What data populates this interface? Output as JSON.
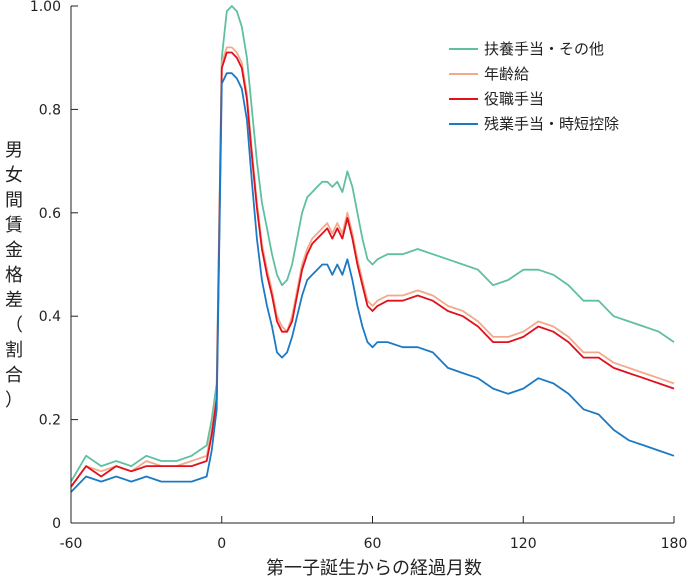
{
  "chart_data": {
    "type": "line",
    "title": "",
    "xlabel": "第一子誕生からの経過月数",
    "ylabel": "男女間賃金格差（割合）",
    "xlim": [
      -60,
      180
    ],
    "ylim": [
      0,
      1.0
    ],
    "x_ticks": [
      -60,
      0,
      60,
      120,
      180
    ],
    "x_tick_labels": [
      "-60",
      "0",
      "60",
      "120",
      "180"
    ],
    "y_ticks": [
      0,
      0.2,
      0.4,
      0.6,
      0.8,
      1.0
    ],
    "y_tick_labels": [
      "0",
      "0.2",
      "0.4",
      "0.6",
      "0.8",
      "1.00"
    ],
    "grid": false,
    "legend_position": "top-right",
    "x": [
      -60,
      -54,
      -48,
      -42,
      -36,
      -30,
      -24,
      -18,
      -12,
      -6,
      -4,
      -2,
      0,
      2,
      4,
      6,
      8,
      10,
      12,
      14,
      16,
      18,
      20,
      22,
      24,
      26,
      28,
      30,
      32,
      34,
      36,
      38,
      40,
      42,
      44,
      46,
      48,
      50,
      52,
      54,
      56,
      58,
      60,
      62,
      66,
      72,
      78,
      84,
      90,
      96,
      102,
      108,
      114,
      120,
      126,
      132,
      138,
      144,
      150,
      156,
      162,
      168,
      174,
      180
    ],
    "series": [
      {
        "name": "扶養手当・その他",
        "color": "#5fc0a0",
        "values": [
          0.08,
          0.13,
          0.11,
          0.12,
          0.11,
          0.13,
          0.12,
          0.12,
          0.13,
          0.15,
          0.2,
          0.27,
          0.9,
          0.99,
          1.0,
          0.99,
          0.96,
          0.9,
          0.8,
          0.7,
          0.62,
          0.57,
          0.52,
          0.48,
          0.46,
          0.47,
          0.5,
          0.55,
          0.6,
          0.63,
          0.64,
          0.65,
          0.66,
          0.66,
          0.65,
          0.66,
          0.64,
          0.68,
          0.65,
          0.6,
          0.55,
          0.51,
          0.5,
          0.51,
          0.52,
          0.52,
          0.53,
          0.52,
          0.51,
          0.5,
          0.49,
          0.46,
          0.47,
          0.49,
          0.49,
          0.48,
          0.46,
          0.43,
          0.43,
          0.4,
          0.39,
          0.38,
          0.37,
          0.35
        ]
      },
      {
        "name": "年齢給",
        "color": "#f2a98c",
        "values": [
          0.07,
          0.11,
          0.1,
          0.11,
          0.1,
          0.12,
          0.11,
          0.11,
          0.12,
          0.13,
          0.18,
          0.25,
          0.89,
          0.92,
          0.92,
          0.91,
          0.89,
          0.83,
          0.72,
          0.62,
          0.54,
          0.49,
          0.45,
          0.4,
          0.38,
          0.37,
          0.4,
          0.45,
          0.5,
          0.53,
          0.55,
          0.56,
          0.57,
          0.58,
          0.56,
          0.58,
          0.56,
          0.6,
          0.56,
          0.51,
          0.47,
          0.43,
          0.42,
          0.43,
          0.44,
          0.44,
          0.45,
          0.44,
          0.42,
          0.41,
          0.39,
          0.36,
          0.36,
          0.37,
          0.39,
          0.38,
          0.36,
          0.33,
          0.33,
          0.31,
          0.3,
          0.29,
          0.28,
          0.27
        ]
      },
      {
        "name": "役職手当",
        "color": "#e0101c",
        "values": [
          0.07,
          0.11,
          0.09,
          0.11,
          0.1,
          0.11,
          0.11,
          0.11,
          0.11,
          0.12,
          0.17,
          0.24,
          0.88,
          0.91,
          0.91,
          0.9,
          0.88,
          0.82,
          0.71,
          0.61,
          0.53,
          0.48,
          0.44,
          0.39,
          0.37,
          0.37,
          0.39,
          0.44,
          0.49,
          0.52,
          0.54,
          0.55,
          0.56,
          0.57,
          0.55,
          0.57,
          0.55,
          0.59,
          0.55,
          0.5,
          0.46,
          0.42,
          0.41,
          0.42,
          0.43,
          0.43,
          0.44,
          0.43,
          0.41,
          0.4,
          0.38,
          0.35,
          0.35,
          0.36,
          0.38,
          0.37,
          0.35,
          0.32,
          0.32,
          0.3,
          0.29,
          0.28,
          0.27,
          0.26
        ]
      },
      {
        "name": "残業手当・時短控除",
        "color": "#1c7ac4",
        "values": [
          0.06,
          0.09,
          0.08,
          0.09,
          0.08,
          0.09,
          0.08,
          0.08,
          0.08,
          0.09,
          0.14,
          0.22,
          0.85,
          0.87,
          0.87,
          0.86,
          0.84,
          0.78,
          0.66,
          0.55,
          0.47,
          0.42,
          0.38,
          0.33,
          0.32,
          0.33,
          0.36,
          0.4,
          0.44,
          0.47,
          0.48,
          0.49,
          0.5,
          0.5,
          0.48,
          0.5,
          0.48,
          0.51,
          0.47,
          0.42,
          0.38,
          0.35,
          0.34,
          0.35,
          0.35,
          0.34,
          0.34,
          0.33,
          0.3,
          0.29,
          0.28,
          0.26,
          0.25,
          0.26,
          0.28,
          0.27,
          0.25,
          0.22,
          0.21,
          0.18,
          0.16,
          0.15,
          0.14,
          0.13
        ]
      }
    ]
  }
}
